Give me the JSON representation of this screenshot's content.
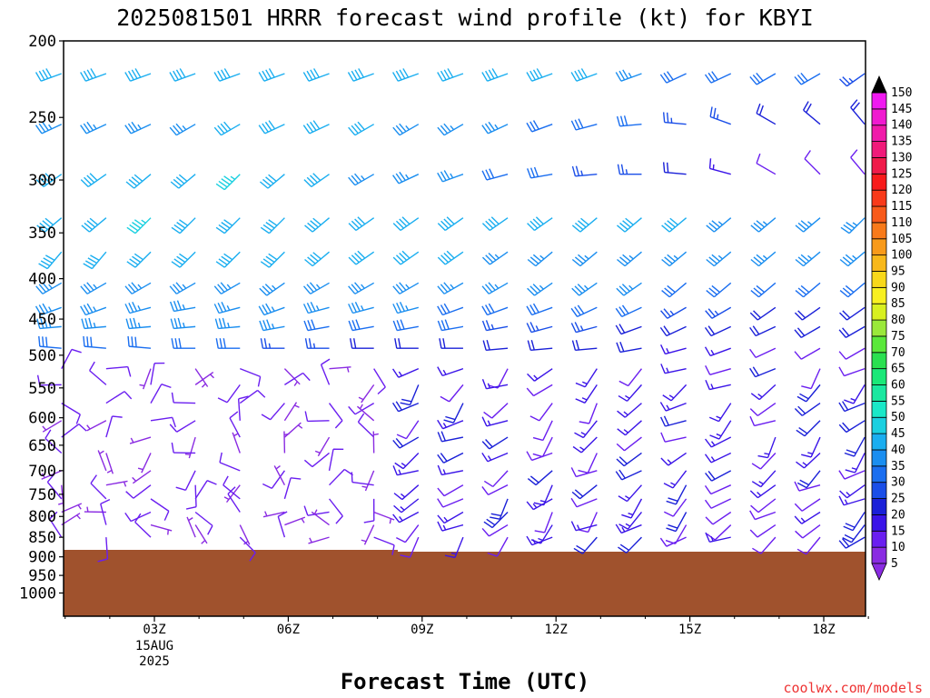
{
  "chart_data": {
    "type": "wind-barb-profile",
    "title": "2025081501 HRRR forecast wind profile (kt) for KBYI",
    "xlabel": "Forecast Time (UTC)",
    "credit": "coolwx.com/models",
    "y_ticks": [
      "200",
      "250",
      "300",
      "350",
      "400",
      "450",
      "500",
      "550",
      "600",
      "650",
      "700",
      "750",
      "800",
      "850",
      "900",
      "950",
      "1000"
    ],
    "x_ticks": [
      {
        "label": "03Z",
        "sub": [
          "15AUG",
          "2025"
        ]
      },
      {
        "label": "06Z",
        "sub": []
      },
      {
        "label": "09Z",
        "sub": []
      },
      {
        "label": "12Z",
        "sub": []
      },
      {
        "label": "15Z",
        "sub": []
      },
      {
        "label": "18Z",
        "sub": []
      }
    ],
    "colorbar_labels": [
      "5",
      "10",
      "15",
      "20",
      "25",
      "30",
      "35",
      "40",
      "45",
      "50",
      "55",
      "60",
      "65",
      "70",
      "75",
      "80",
      "85",
      "90",
      "95",
      "100",
      "105",
      "110",
      "115",
      "120",
      "125",
      "130",
      "135",
      "140",
      "145",
      "150"
    ],
    "colorbar_colors": [
      "#8a2be2",
      "#6a1ef0",
      "#3a14e8",
      "#1a20d8",
      "#1a4ee8",
      "#1a6ef0",
      "#1a8ef0",
      "#1aaef0",
      "#1ad0e0",
      "#1ae8c8",
      "#1ae8a0",
      "#1ae878",
      "#2ae050",
      "#5ae83a",
      "#9ae83a",
      "#d8f020",
      "#f8f020",
      "#f8d81a",
      "#f8b81a",
      "#f89a1a",
      "#f87a1a",
      "#f85a1a",
      "#f83a1a",
      "#f81a1a",
      "#f01a4a",
      "#f01a7a",
      "#f01aaa",
      "#f01ad0",
      "#f01af0",
      "#000000"
    ],
    "terrain_color": "#a0522d",
    "times_hours": [
      1,
      2,
      3,
      4,
      5,
      6,
      7,
      8,
      9,
      10,
      11,
      12,
      13,
      14,
      15,
      16,
      17,
      18,
      19
    ],
    "upper_levels": [
      220,
      255,
      295,
      335,
      370,
      405,
      435,
      460,
      490
    ],
    "upper_wind": {
      "dir": [
        [
          250,
          250,
          250,
          250,
          250,
          250,
          250,
          250,
          250,
          250,
          250,
          250,
          250,
          250,
          245,
          245,
          240,
          240,
          235
        ],
        [
          245,
          245,
          245,
          240,
          240,
          245,
          245,
          240,
          240,
          240,
          245,
          250,
          255,
          265,
          275,
          290,
          300,
          310,
          320
        ],
        [
          235,
          235,
          230,
          230,
          225,
          230,
          235,
          240,
          245,
          250,
          255,
          260,
          265,
          270,
          275,
          285,
          300,
          315,
          320
        ],
        [
          230,
          230,
          225,
          225,
          225,
          225,
          230,
          235,
          235,
          235,
          235,
          235,
          230,
          230,
          230,
          230,
          230,
          230,
          225
        ],
        [
          220,
          220,
          225,
          225,
          225,
          225,
          230,
          235,
          235,
          235,
          235,
          230,
          230,
          230,
          230,
          230,
          230,
          230,
          230
        ],
        [
          240,
          240,
          240,
          240,
          240,
          235,
          240,
          240,
          240,
          240,
          240,
          235,
          235,
          235,
          230,
          230,
          230,
          230,
          230
        ],
        [
          250,
          250,
          255,
          260,
          255,
          250,
          255,
          255,
          255,
          250,
          250,
          250,
          245,
          245,
          240,
          240,
          235,
          235,
          235
        ],
        [
          265,
          265,
          265,
          265,
          265,
          260,
          260,
          260,
          260,
          260,
          260,
          255,
          255,
          250,
          245,
          245,
          245,
          240,
          240
        ],
        [
          275,
          275,
          275,
          270,
          270,
          270,
          270,
          270,
          270,
          270,
          265,
          265,
          265,
          260,
          255,
          250,
          245,
          240,
          240
        ]
      ],
      "spd": [
        [
          38,
          40,
          38,
          38,
          38,
          38,
          38,
          38,
          38,
          38,
          38,
          38,
          38,
          35,
          32,
          30,
          28,
          28,
          27
        ],
        [
          36,
          36,
          36,
          36,
          38,
          38,
          38,
          38,
          36,
          35,
          33,
          30,
          30,
          28,
          25,
          25,
          22,
          20,
          20
        ],
        [
          38,
          38,
          38,
          42,
          43,
          40,
          38,
          36,
          35,
          33,
          30,
          28,
          27,
          25,
          18,
          15,
          10,
          10,
          10
        ],
        [
          40,
          42,
          43,
          42,
          40,
          40,
          40,
          40,
          40,
          40,
          40,
          38,
          38,
          38,
          38,
          36,
          35,
          35,
          35
        ],
        [
          38,
          40,
          40,
          40,
          38,
          38,
          38,
          38,
          38,
          38,
          36,
          36,
          36,
          36,
          33,
          33,
          33,
          33,
          33
        ],
        [
          37,
          37,
          37,
          37,
          36,
          36,
          36,
          36,
          36,
          33,
          33,
          33,
          33,
          33,
          32,
          32,
          30,
          30,
          30
        ],
        [
          36,
          36,
          36,
          35,
          35,
          35,
          35,
          33,
          33,
          30,
          30,
          28,
          28,
          28,
          25,
          25,
          22,
          22,
          22
        ],
        [
          35,
          35,
          35,
          33,
          33,
          33,
          30,
          30,
          28,
          28,
          25,
          25,
          25,
          22,
          20,
          20,
          18,
          18,
          18
        ],
        [
          32,
          32,
          30,
          28,
          28,
          25,
          25,
          22,
          22,
          22,
          20,
          20,
          18,
          18,
          15,
          15,
          12,
          12,
          12
        ]
      ]
    }
  }
}
